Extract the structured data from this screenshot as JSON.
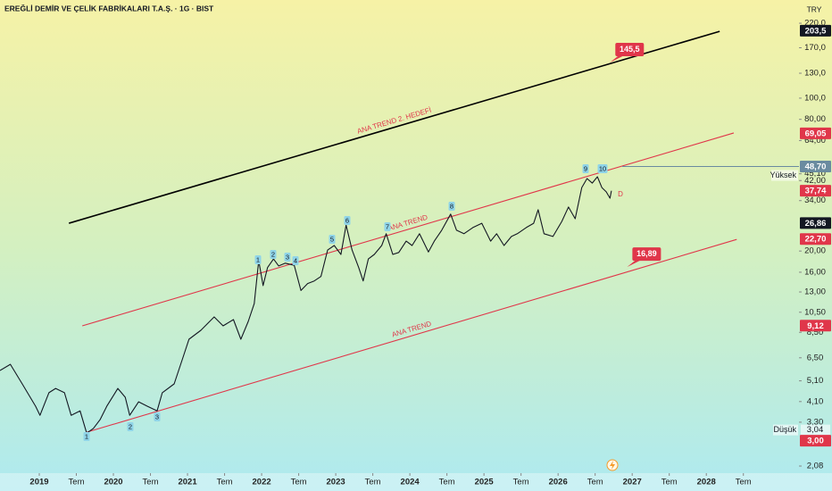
{
  "chart_data": {
    "type": "line",
    "title": "EREĞLİ DEMİR VE ÇELİK FABRİKALARI T.A.Ş. · 1G · BIST",
    "currency": "TRY",
    "log_scale": true,
    "grid": false,
    "color": "#131722",
    "xlim": [
      2018.47,
      2029.25
    ],
    "ylim": [
      1.93,
      281
    ],
    "x": [
      2018.47,
      2018.61,
      2018.77,
      2018.95,
      2019.01,
      2019.13,
      2019.22,
      2019.34,
      2019.43,
      2019.55,
      2019.64,
      2019.73,
      2019.82,
      2019.91,
      2020.06,
      2020.16,
      2020.22,
      2020.34,
      2020.46,
      2020.59,
      2020.66,
      2020.82,
      2020.94,
      2021.02,
      2021.18,
      2021.36,
      2021.48,
      2021.62,
      2021.72,
      2021.82,
      2021.9,
      2021.96,
      2022.02,
      2022.08,
      2022.16,
      2022.23,
      2022.32,
      2022.44,
      2022.53,
      2022.62,
      2022.71,
      2022.8,
      2022.89,
      2022.98,
      2023.07,
      2023.14,
      2023.22,
      2023.31,
      2023.37,
      2023.44,
      2023.52,
      2023.62,
      2023.68,
      2023.77,
      2023.85,
      2023.95,
      2024.03,
      2024.13,
      2024.25,
      2024.33,
      2024.43,
      2024.55,
      2024.63,
      2024.73,
      2024.85,
      2024.97,
      2025.09,
      2025.17,
      2025.27,
      2025.37,
      2025.45,
      2025.57,
      2025.67,
      2025.73,
      2025.81,
      2025.93,
      2026.05,
      2026.14,
      2026.23,
      2026.32,
      2026.39,
      2026.46,
      2026.53,
      2026.59,
      2026.65,
      2026.7,
      2026.72
    ],
    "values": [
      5.69,
      6.07,
      4.94,
      3.9,
      3.55,
      4.5,
      4.71,
      4.5,
      3.55,
      3.72,
      2.94,
      3.09,
      3.39,
      3.9,
      4.71,
      4.29,
      3.55,
      4.09,
      3.9,
      3.72,
      4.5,
      4.94,
      6.55,
      7.9,
      8.68,
      10.0,
      9.1,
      9.72,
      7.9,
      9.54,
      11.5,
      18.1,
      13.9,
      16.8,
      18.4,
      17.1,
      17.6,
      17.2,
      13.2,
      14.2,
      14.6,
      15.3,
      20.2,
      21.2,
      19.3,
      26.3,
      20.2,
      16.8,
      14.6,
      18.4,
      19.3,
      21.2,
      24.0,
      19.3,
      19.7,
      22.2,
      21.2,
      24.0,
      19.8,
      22.2,
      24.9,
      29.5,
      24.9,
      24.0,
      25.6,
      26.8,
      22.2,
      24.0,
      21.2,
      23.3,
      24.0,
      25.6,
      26.8,
      30.9,
      24.0,
      23.3,
      27.3,
      31.8,
      28.1,
      39.0,
      42.9,
      40.9,
      43.7,
      39.0,
      37.3,
      34.9,
      37.7
    ],
    "yticks": [
      {
        "value": 220,
        "label": "220,0"
      },
      {
        "value": 170,
        "label": "170,0"
      },
      {
        "value": 130,
        "label": "130,0"
      },
      {
        "value": 100,
        "label": "100,0"
      },
      {
        "value": 80,
        "label": "80,00"
      },
      {
        "value": 64,
        "label": "64,00"
      },
      {
        "value": 45.1,
        "label": "45,10"
      },
      {
        "value": 42,
        "label": "42,00"
      },
      {
        "value": 34,
        "label": "34,00"
      },
      {
        "value": 20,
        "label": "20,00"
      },
      {
        "value": 16,
        "label": "16,00"
      },
      {
        "value": 13,
        "label": "13,00"
      },
      {
        "value": 10.5,
        "label": "10,50"
      },
      {
        "value": 8.5,
        "label": "8,50"
      },
      {
        "value": 6.5,
        "label": "6,50"
      },
      {
        "value": 5.1,
        "label": "5,10"
      },
      {
        "value": 4.1,
        "label": "4,10"
      },
      {
        "value": 3.3,
        "label": "3,30"
      },
      {
        "value": 2.08,
        "label": "2,08"
      }
    ],
    "xticks": [
      2019,
      {
        "value": 2019.5,
        "label": "Tem"
      },
      2020,
      {
        "value": 2020.5,
        "label": "Tem"
      },
      2021,
      {
        "value": 2021.5,
        "label": "Tem"
      },
      2022,
      {
        "value": 2022.5,
        "label": "Tem"
      },
      2023,
      {
        "value": 2023.5,
        "label": "Tem"
      },
      2024,
      {
        "value": 2024.5,
        "label": "Tem"
      },
      2025,
      {
        "value": 2025.5,
        "label": "Tem"
      },
      2026,
      {
        "value": 2026.5,
        "label": "Tem"
      },
      2027,
      {
        "value": 2027.5,
        "label": "Tem"
      },
      2028,
      {
        "value": 2028.5,
        "label": "Tem"
      }
    ],
    "trend_lines": [
      {
        "label": "ANA TREND 2. HEDEFİ",
        "color": "#000000",
        "x": [
          2019.4,
          2028.18
        ],
        "y": [
          26.8,
          202
        ]
      },
      {
        "label": "ANA TREND",
        "color": "#e0364a",
        "x": [
          2019.58,
          2028.37
        ],
        "y": [
          9.1,
          69.3
        ]
      },
      {
        "label": "ANA TREND",
        "color": "#e0364a",
        "x": [
          2019.64,
          2028.41
        ],
        "y": [
          2.97,
          22.6
        ]
      }
    ],
    "targets": [
      {
        "label": "145,5",
        "value": 145.5,
        "x": 2026.7
      },
      {
        "label": "16,89",
        "value": 16.89,
        "x": 2026.93
      }
    ],
    "price_markers": [
      {
        "value": 203.5,
        "label": "203,5",
        "color": "#131722"
      },
      {
        "value": 69.05,
        "label": "69,05",
        "color": "#e0364a"
      },
      {
        "value": 48.7,
        "label": "48,70",
        "color": "#6a8ba0"
      },
      {
        "value": 37.74,
        "label": "37,74",
        "color": "#e0364a"
      },
      {
        "value": 26.86,
        "label": "26,86",
        "color": "#131722"
      },
      {
        "value": 22.7,
        "label": "22,70",
        "color": "#e0364a"
      },
      {
        "value": 9.12,
        "label": "9,12",
        "color": "#e0364a"
      },
      {
        "value": 3.0,
        "label": "3,00",
        "color": "#e0364a"
      }
    ],
    "high": {
      "name": "Yüksek",
      "value": 48.7
    },
    "low": {
      "name": "Düşük",
      "value": 3.04,
      "label": "3,04"
    },
    "wave_labels": [
      "1",
      "2",
      "3",
      "4",
      "5",
      "6",
      "7",
      "8",
      "9",
      "10",
      "1",
      "2",
      "3"
    ],
    "signal": "D"
  }
}
